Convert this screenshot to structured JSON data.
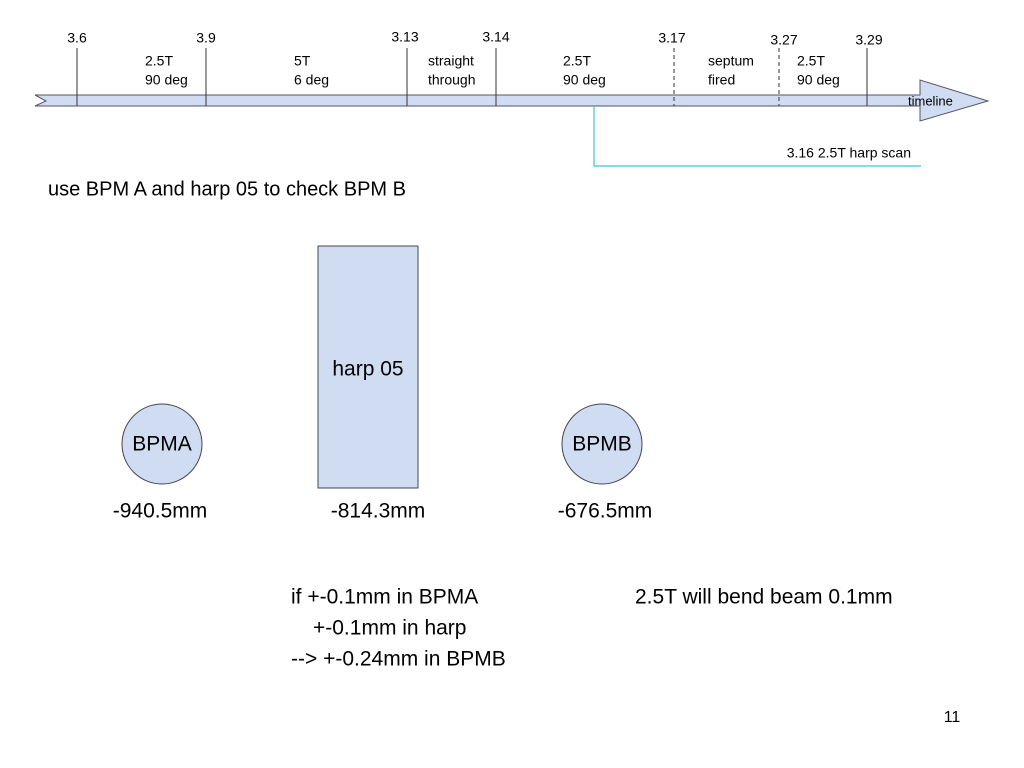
{
  "timeline": {
    "label": "timeline",
    "markers": [
      "3.6",
      "3.9",
      "3.13",
      "3.14",
      "3.17",
      "3.27",
      "3.29"
    ],
    "segments": [
      [
        "2.5T",
        "90 deg"
      ],
      [
        "5T",
        "6 deg"
      ],
      [
        "straight",
        "through"
      ],
      [
        "2.5T",
        "90 deg"
      ],
      [
        "septum",
        "fired"
      ],
      [
        "2.5T",
        "90 deg"
      ]
    ],
    "scan": "3.16 2.5T harp scan"
  },
  "heading": "use BPM A and harp 05 to check BPM B",
  "devices": [
    {
      "label": "BPMA",
      "position": "-940.5mm"
    },
    {
      "label": "harp 05",
      "position": "-814.3mm"
    },
    {
      "label": "BPMB",
      "position": "-676.5mm"
    }
  ],
  "notes": {
    "error": [
      "if +-0.1mm in BPMA",
      "+-0.1mm in harp",
      "--> +-0.24mm in BPMB"
    ],
    "bend": "2.5T will bend beam 0.1mm"
  },
  "page_number": "11"
}
